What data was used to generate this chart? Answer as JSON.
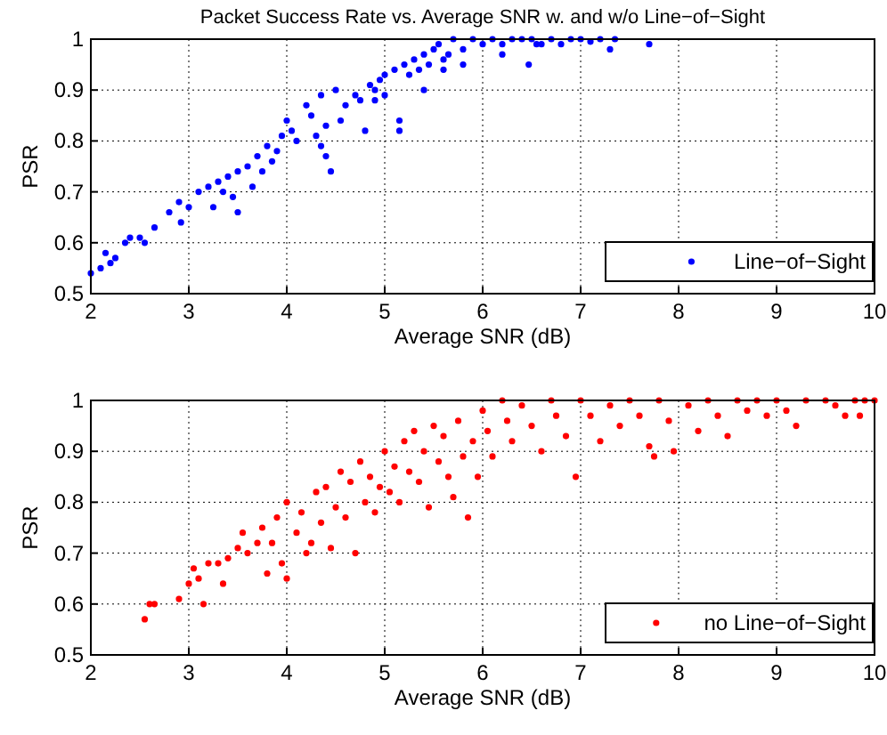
{
  "chart_data": [
    {
      "type": "scatter",
      "title": "Packet Success Rate vs. Average SNR w. and w/o Line−of−Sight",
      "xlabel": "Average SNR (dB)",
      "ylabel": "PSR",
      "xlim": [
        2,
        10
      ],
      "ylim": [
        0.5,
        1
      ],
      "xticks": [
        2,
        3,
        4,
        5,
        6,
        7,
        8,
        9,
        10
      ],
      "yticks": [
        0.5,
        0.6,
        0.7,
        0.8,
        0.9,
        1
      ],
      "grid": true,
      "legend": "bottom right",
      "marker": "circle",
      "series": [
        {
          "name": "Line−of−Sight",
          "color": "#0000ff",
          "x": [
            2.0,
            2.1,
            2.15,
            2.2,
            2.25,
            2.35,
            2.4,
            2.5,
            2.55,
            2.65,
            2.8,
            2.9,
            2.92,
            3.0,
            3.1,
            3.2,
            3.25,
            3.3,
            3.35,
            3.4,
            3.45,
            3.5,
            3.5,
            3.6,
            3.65,
            3.7,
            3.75,
            3.8,
            3.85,
            3.9,
            3.95,
            4.0,
            4.05,
            4.1,
            4.2,
            4.25,
            4.3,
            4.35,
            4.4,
            4.45,
            4.35,
            4.5,
            4.4,
            4.55,
            4.6,
            4.7,
            4.75,
            4.8,
            4.85,
            4.9,
            4.95,
            5.0,
            5.0,
            5.1,
            5.15,
            5.15,
            5.2,
            5.25,
            5.3,
            5.35,
            5.4,
            5.45,
            5.5,
            5.55,
            5.6,
            5.65,
            5.7,
            5.8,
            5.9,
            6.0,
            6.1,
            6.2,
            6.3,
            6.4,
            6.5,
            6.55,
            6.47,
            6.6,
            6.7,
            6.8,
            6.9,
            7.0,
            7.1,
            7.2,
            7.3,
            7.35,
            7.7,
            5.4,
            4.9,
            5.6,
            5.8,
            6.2
          ],
          "values": [
            0.54,
            0.55,
            0.58,
            0.56,
            0.57,
            0.6,
            0.61,
            0.61,
            0.6,
            0.63,
            0.66,
            0.68,
            0.64,
            0.67,
            0.7,
            0.71,
            0.67,
            0.72,
            0.7,
            0.73,
            0.69,
            0.66,
            0.74,
            0.75,
            0.71,
            0.77,
            0.74,
            0.79,
            0.76,
            0.78,
            0.81,
            0.84,
            0.82,
            0.8,
            0.87,
            0.85,
            0.81,
            0.79,
            0.77,
            0.74,
            0.89,
            0.9,
            0.83,
            0.84,
            0.87,
            0.89,
            0.88,
            0.82,
            0.91,
            0.9,
            0.92,
            0.93,
            0.89,
            0.94,
            0.82,
            0.84,
            0.95,
            0.93,
            0.96,
            0.94,
            0.97,
            0.95,
            0.98,
            0.99,
            0.96,
            0.97,
            1.0,
            0.98,
            1.0,
            0.99,
            1.0,
            0.99,
            1.0,
            1.0,
            1.0,
            0.99,
            0.95,
            0.99,
            1.0,
            0.99,
            1.0,
            1.0,
            0.995,
            1.0,
            0.98,
            1.0,
            0.99,
            0.9,
            0.88,
            0.94,
            0.95,
            0.97
          ]
        }
      ]
    },
    {
      "type": "scatter",
      "xlabel": "Average SNR (dB)",
      "ylabel": "PSR",
      "xlim": [
        2,
        10
      ],
      "ylim": [
        0.5,
        1
      ],
      "xticks": [
        2,
        3,
        4,
        5,
        6,
        7,
        8,
        9,
        10
      ],
      "yticks": [
        0.5,
        0.6,
        0.7,
        0.8,
        0.9,
        1
      ],
      "grid": true,
      "legend": "bottom right",
      "marker": "circle",
      "series": [
        {
          "name": "no Line−of−Sight",
          "color": "#ff0000",
          "x": [
            2.55,
            2.6,
            2.65,
            2.9,
            3.0,
            3.05,
            3.1,
            3.15,
            3.2,
            3.3,
            3.35,
            3.4,
            3.5,
            3.55,
            3.6,
            3.7,
            3.75,
            3.8,
            3.85,
            3.9,
            3.95,
            4.0,
            4.0,
            4.1,
            4.15,
            4.2,
            4.25,
            4.3,
            4.35,
            4.4,
            4.45,
            4.5,
            4.55,
            4.6,
            4.65,
            4.7,
            4.75,
            4.8,
            4.85,
            4.9,
            4.95,
            5.0,
            5.05,
            5.1,
            5.15,
            5.2,
            5.25,
            5.3,
            5.35,
            5.4,
            5.45,
            5.5,
            5.55,
            5.6,
            5.65,
            5.7,
            5.75,
            5.8,
            5.85,
            5.9,
            5.95,
            6.0,
            6.05,
            6.1,
            6.2,
            6.25,
            6.3,
            6.4,
            6.5,
            6.6,
            6.7,
            6.75,
            6.85,
            6.95,
            7.0,
            7.1,
            7.2,
            7.3,
            7.4,
            7.5,
            7.6,
            7.7,
            7.75,
            7.8,
            7.9,
            7.95,
            8.1,
            8.2,
            8.3,
            8.4,
            8.5,
            8.6,
            8.7,
            8.8,
            8.9,
            9.0,
            9.1,
            9.2,
            9.3,
            9.5,
            9.6,
            9.7,
            9.8,
            9.85,
            9.9,
            10.0
          ],
          "values": [
            0.57,
            0.6,
            0.6,
            0.61,
            0.64,
            0.67,
            0.65,
            0.6,
            0.68,
            0.68,
            0.64,
            0.69,
            0.71,
            0.74,
            0.7,
            0.72,
            0.75,
            0.66,
            0.72,
            0.77,
            0.68,
            0.65,
            0.8,
            0.74,
            0.78,
            0.7,
            0.72,
            0.82,
            0.76,
            0.83,
            0.71,
            0.79,
            0.86,
            0.77,
            0.84,
            0.7,
            0.88,
            0.8,
            0.85,
            0.78,
            0.83,
            0.9,
            0.82,
            0.87,
            0.8,
            0.92,
            0.86,
            0.94,
            0.84,
            0.9,
            0.79,
            0.95,
            0.88,
            0.93,
            0.85,
            0.81,
            0.96,
            0.89,
            0.77,
            0.92,
            0.85,
            0.98,
            0.94,
            0.89,
            1.0,
            0.96,
            0.92,
            0.99,
            0.95,
            0.9,
            1.0,
            0.97,
            0.93,
            0.85,
            1.0,
            0.97,
            0.92,
            0.99,
            0.95,
            1.0,
            0.97,
            0.91,
            0.89,
            1.0,
            0.96,
            0.9,
            0.99,
            0.94,
            1.0,
            0.97,
            0.93,
            1.0,
            0.98,
            1.0,
            0.97,
            1.0,
            0.98,
            0.95,
            1.0,
            1.0,
            0.99,
            0.97,
            1.0,
            0.97,
            1.0,
            1.0
          ]
        }
      ]
    }
  ]
}
